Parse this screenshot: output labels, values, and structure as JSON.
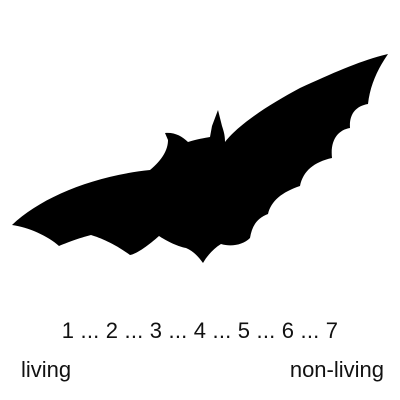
{
  "stimulus": {
    "icon": "bat-silhouette-icon",
    "color": "#000000"
  },
  "rating_scale": {
    "points": [
      "1",
      "2",
      "3",
      "4",
      "5",
      "6",
      "7"
    ],
    "separator": " ... ",
    "left_anchor": "living",
    "right_anchor": "non-living"
  }
}
